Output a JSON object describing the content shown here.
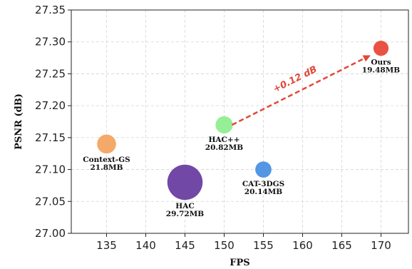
{
  "chart_data": {
    "type": "scatter",
    "xlabel": "FPS",
    "ylabel": "PSNR (dB)",
    "xlim": [
      130.5,
      173.5
    ],
    "ylim": [
      27.0,
      27.35
    ],
    "xticks": [
      135,
      140,
      145,
      150,
      155,
      160,
      165,
      170
    ],
    "yticks": [
      "27.00",
      "27.05",
      "27.10",
      "27.15",
      "27.20",
      "27.25",
      "27.30",
      "27.35"
    ],
    "grid": true,
    "points": [
      {
        "name": "Context-GS",
        "size_label": "21.8MB",
        "x": 135,
        "y": 27.14,
        "size_mb": 21.8,
        "color": "#f4a460"
      },
      {
        "name": "HAC",
        "size_label": "29.72MB",
        "x": 145,
        "y": 27.08,
        "size_mb": 29.72,
        "color": "#6a3ea1"
      },
      {
        "name": "HAC++",
        "size_label": "20.82MB",
        "x": 150,
        "y": 27.17,
        "size_mb": 20.82,
        "color": "#90ee90"
      },
      {
        "name": "CAT-3DGS",
        "size_label": "20.14MB",
        "x": 155,
        "y": 27.1,
        "size_mb": 20.14,
        "color": "#4a90e2"
      },
      {
        "name": "Ours",
        "size_label": "19.48MB",
        "x": 170,
        "y": 27.29,
        "size_mb": 19.48,
        "color": "#e8483b"
      }
    ],
    "annotation": {
      "text": "+0.12 dB",
      "from": {
        "x": 151,
        "y": 27.17
      },
      "to": {
        "x": 168.5,
        "y": 27.278
      },
      "color": "#e0483a"
    }
  }
}
